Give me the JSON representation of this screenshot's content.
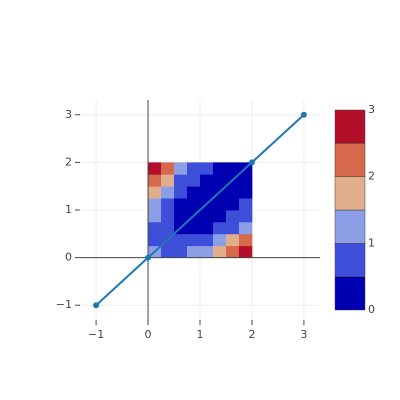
{
  "chart_data": [
    {
      "type": "line",
      "x": [
        -1,
        0,
        2,
        3
      ],
      "series": [
        {
          "color": "#1f77b4",
          "values": [
            -1,
            0,
            2,
            3
          ]
        }
      ],
      "xlim": [
        -1.31,
        3.31
      ],
      "ylim": [
        -1.31,
        3.31
      ],
      "xticks": [
        {
          "value": -1,
          "label": "−1"
        },
        0,
        1,
        2,
        3
      ],
      "yticks": [
        {
          "value": -1,
          "label": "−1"
        },
        0,
        1,
        2,
        3
      ],
      "grid": true
    },
    {
      "type": "contour",
      "x": [
        0.125,
        0.375,
        0.625,
        0.875,
        1.125,
        1.375,
        1.625,
        1.875
      ],
      "y": [
        0.125,
        0.375,
        0.625,
        0.875,
        1.125,
        1.375,
        1.625,
        1.875
      ],
      "z": [
        [
          1.05,
          0.92,
          0.92,
          1.05,
          1.31,
          1.7,
          2.23,
          2.88
        ],
        [
          0.92,
          0.69,
          0.6,
          0.64,
          0.8,
          1.1,
          1.53,
          2.09
        ],
        [
          0.92,
          0.6,
          0.41,
          0.35,
          0.43,
          0.63,
          0.96,
          1.43
        ],
        [
          1.05,
          0.64,
          0.35,
          0.2,
          0.18,
          0.29,
          0.53,
          0.9
        ],
        [
          1.31,
          0.8,
          0.43,
          0.18,
          0.06,
          0.08,
          0.23,
          0.51
        ],
        [
          1.7,
          1.1,
          0.63,
          0.29,
          0.08,
          0.0,
          0.06,
          0.25
        ],
        [
          2.23,
          1.53,
          0.96,
          0.53,
          0.23,
          0.06,
          0.02,
          0.11
        ],
        [
          2.88,
          2.09,
          1.43,
          0.9,
          0.51,
          0.25,
          0.11,
          0.11
        ]
      ],
      "levels": [
        0,
        0.5,
        1,
        1.5,
        2,
        2.5,
        3
      ],
      "colors": [
        "#0000b3",
        "#3d4fd9",
        "#8c9fe6",
        "#e0ae8a",
        "#d6684b",
        "#b30f2a"
      ],
      "zlim": [
        0,
        3
      ],
      "zticks": [
        0,
        1,
        2,
        3
      ]
    }
  ]
}
